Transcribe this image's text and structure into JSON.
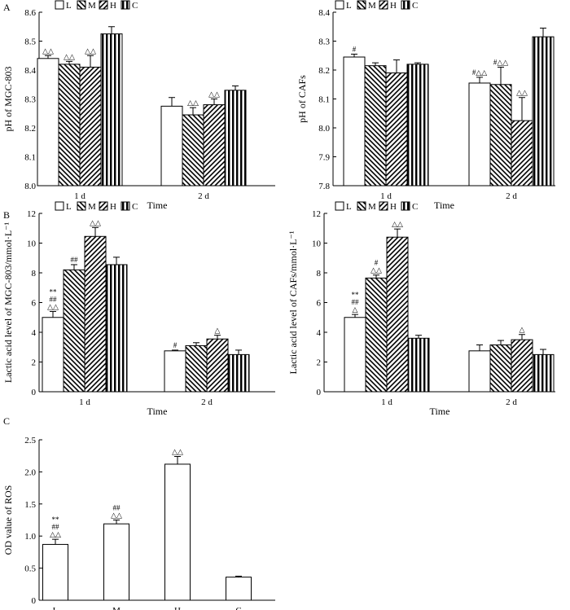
{
  "figure": {
    "panels": [
      "A",
      "B",
      "C"
    ]
  },
  "colors": {
    "bar_fill": "#ffffff",
    "stroke": "#000000",
    "hatch": "#000000"
  },
  "legend": [
    {
      "key": "L",
      "pattern": "none"
    },
    {
      "key": "M",
      "pattern": "back"
    },
    {
      "key": "H",
      "pattern": "fwd"
    },
    {
      "key": "C",
      "pattern": "vert"
    }
  ],
  "chart_data": [
    {
      "id": "A-left",
      "type": "bar",
      "panel_label": "A",
      "title": "",
      "xlabel": "Time",
      "ylabel": "pH of MGC-803",
      "categories": [
        "1 d",
        "2 d"
      ],
      "ylim": [
        8.0,
        8.6
      ],
      "yticks": [
        "8.0",
        "8.1",
        "8.2",
        "8.3",
        "8.4",
        "8.5",
        "8.6"
      ],
      "series": [
        {
          "name": "L",
          "pattern": "none",
          "values": [
            8.44,
            8.275
          ],
          "errors": [
            0.01,
            0.03
          ],
          "marks": [
            "△△",
            ""
          ]
        },
        {
          "name": "M",
          "pattern": "back",
          "values": [
            8.42,
            8.245
          ],
          "errors": [
            0.01,
            0.025
          ],
          "marks": [
            "△△",
            "△△"
          ]
        },
        {
          "name": "H",
          "pattern": "fwd",
          "values": [
            8.41,
            8.28
          ],
          "errors": [
            0.04,
            0.02
          ],
          "marks": [
            "△△",
            "△△"
          ]
        },
        {
          "name": "C",
          "pattern": "vert",
          "values": [
            8.525,
            8.33
          ],
          "errors": [
            0.025,
            0.015
          ],
          "marks": [
            "",
            ""
          ]
        }
      ]
    },
    {
      "id": "A-right",
      "type": "bar",
      "panel_label": "",
      "title": "",
      "xlabel": "Time",
      "ylabel": "pH of CAFs",
      "categories": [
        "1 d",
        "2 d"
      ],
      "ylim": [
        7.8,
        8.4
      ],
      "yticks": [
        "7.8",
        "7.9",
        "8.0",
        "8.1",
        "8.2",
        "8.3",
        "8.4"
      ],
      "series": [
        {
          "name": "L",
          "pattern": "none",
          "values": [
            8.245,
            8.155
          ],
          "errors": [
            0.01,
            0.02
          ],
          "marks": [
            "#",
            "#△△"
          ]
        },
        {
          "name": "M",
          "pattern": "back",
          "values": [
            8.215,
            8.15
          ],
          "errors": [
            0.01,
            0.06
          ],
          "marks": [
            "",
            "#△△"
          ]
        },
        {
          "name": "H",
          "pattern": "fwd",
          "values": [
            8.19,
            8.025
          ],
          "errors": [
            0.045,
            0.08
          ],
          "marks": [
            "",
            "△△"
          ]
        },
        {
          "name": "C",
          "pattern": "vert",
          "values": [
            8.22,
            8.315
          ],
          "errors": [
            0.005,
            0.03
          ],
          "marks": [
            "",
            ""
          ]
        }
      ]
    },
    {
      "id": "B-left",
      "type": "bar",
      "panel_label": "B",
      "title": "",
      "xlabel": "Time",
      "ylabel": "Lactic acid level of MGC-803/mmol·L⁻¹",
      "categories": [
        "1 d",
        "2 d"
      ],
      "ylim": [
        0,
        12
      ],
      "yticks": [
        "0",
        "2",
        "4",
        "6",
        "8",
        "10",
        "12"
      ],
      "series": [
        {
          "name": "L",
          "pattern": "none",
          "values": [
            5.0,
            2.75
          ],
          "errors": [
            0.4,
            0.05
          ],
          "marks": [
            "△△\n##\n**",
            "#"
          ]
        },
        {
          "name": "M",
          "pattern": "back",
          "values": [
            8.2,
            3.1
          ],
          "errors": [
            0.35,
            0.2
          ],
          "marks": [
            "##",
            ""
          ]
        },
        {
          "name": "H",
          "pattern": "fwd",
          "values": [
            10.45,
            3.55
          ],
          "errors": [
            0.6,
            0.25
          ],
          "marks": [
            "△△",
            "△"
          ]
        },
        {
          "name": "C",
          "pattern": "vert",
          "values": [
            8.55,
            2.5
          ],
          "errors": [
            0.5,
            0.3
          ],
          "marks": [
            "",
            ""
          ]
        }
      ]
    },
    {
      "id": "B-right",
      "type": "bar",
      "panel_label": "",
      "title": "",
      "xlabel": "Time",
      "ylabel": "Lactic acid level of CAFs/mmol·L⁻¹",
      "categories": [
        "1 d",
        "2 d"
      ],
      "ylim": [
        0,
        12
      ],
      "yticks": [
        "0",
        "2",
        "4",
        "6",
        "8",
        "10",
        "12"
      ],
      "series": [
        {
          "name": "L",
          "pattern": "none",
          "values": [
            5.0,
            2.75
          ],
          "errors": [
            0.2,
            0.4
          ],
          "marks": [
            "△\n##\n**",
            ""
          ]
        },
        {
          "name": "M",
          "pattern": "back",
          "values": [
            7.65,
            3.15
          ],
          "errors": [
            0.2,
            0.3
          ],
          "marks": [
            "△△\n#",
            ""
          ]
        },
        {
          "name": "H",
          "pattern": "fwd",
          "values": [
            10.4,
            3.5
          ],
          "errors": [
            0.55,
            0.35
          ],
          "marks": [
            "△△",
            "△"
          ]
        },
        {
          "name": "C",
          "pattern": "vert",
          "values": [
            3.6,
            2.5
          ],
          "errors": [
            0.2,
            0.35
          ],
          "marks": [
            "",
            ""
          ]
        }
      ]
    },
    {
      "id": "C",
      "type": "bar",
      "panel_label": "C",
      "title": "",
      "xlabel": "",
      "ylabel": "OD value of ROS",
      "categories": [
        "L",
        "M",
        "H",
        "C"
      ],
      "ylim": [
        0,
        2.5
      ],
      "yticks": [
        "0",
        "0.5",
        "1.0",
        "1.5",
        "2.0",
        "2.5"
      ],
      "series": [
        {
          "name": "ROS",
          "pattern": "none",
          "values": [
            0.87,
            1.19,
            2.12,
            0.36
          ],
          "errors": [
            0.08,
            0.06,
            0.12,
            0.015
          ],
          "marks": [
            "△△\n##\n**",
            "△△\n##",
            "△△",
            ""
          ]
        }
      ]
    }
  ]
}
